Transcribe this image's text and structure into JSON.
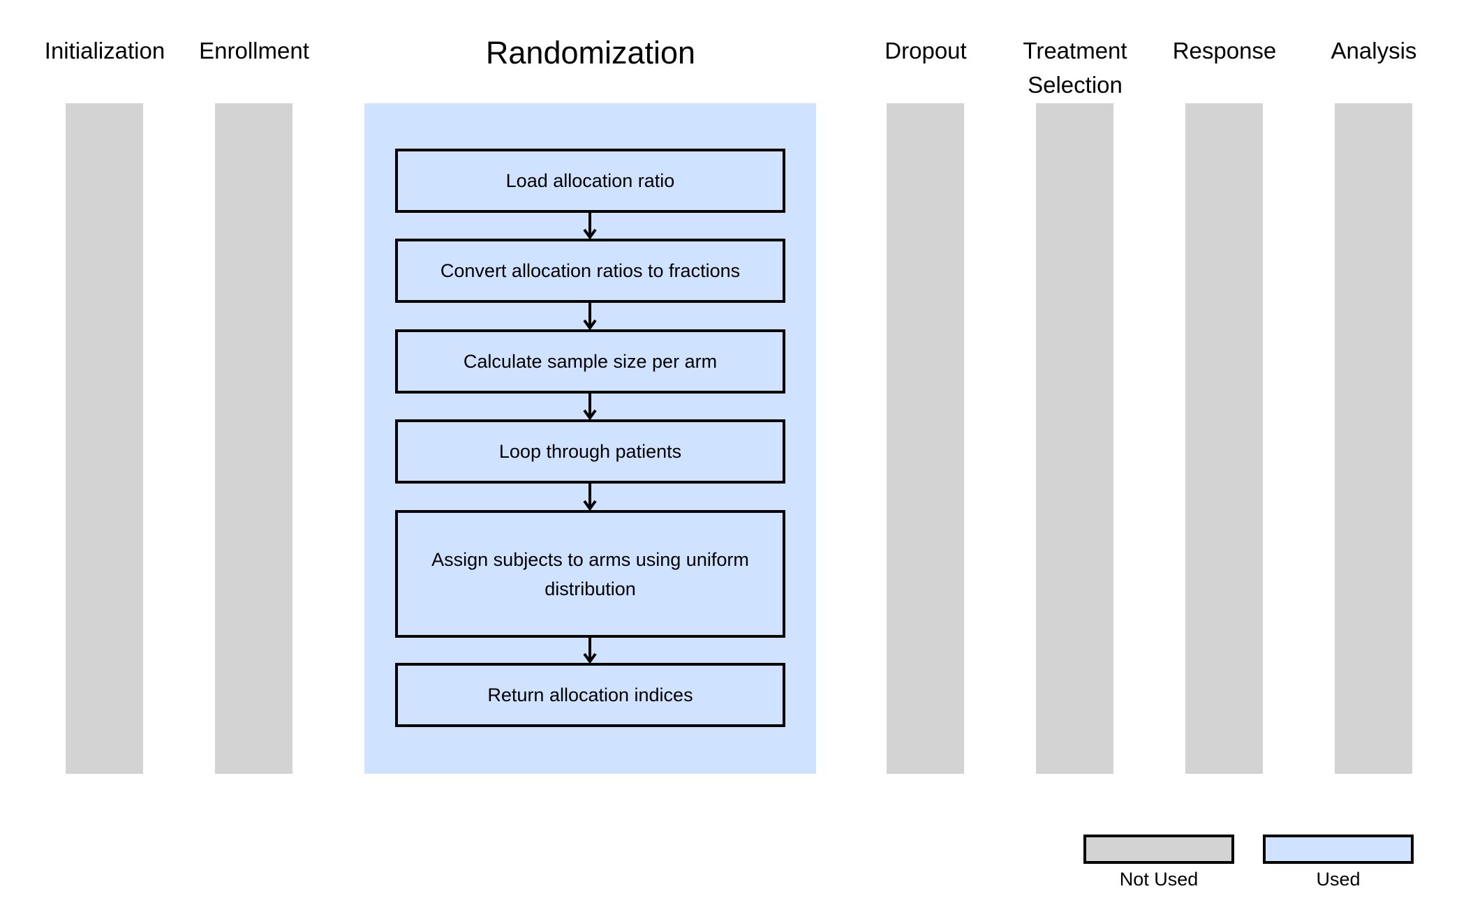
{
  "colors": {
    "not_used": "#d3d3d3",
    "used": "#cfe2ff",
    "border": "#000000"
  },
  "stages": [
    {
      "label": "Initialization",
      "used": false
    },
    {
      "label": "Enrollment",
      "used": false
    },
    {
      "label": "Randomization",
      "used": true
    },
    {
      "label": "Dropout",
      "used": false
    },
    {
      "label": "Treatment\nSelection",
      "used": false
    },
    {
      "label": "Response",
      "used": false
    },
    {
      "label": "Analysis",
      "used": false
    }
  ],
  "randomization_steps": [
    "Load allocation ratio",
    "Convert allocation ratios to fractions",
    "Calculate sample size per arm",
    "Loop through patients",
    "Assign subjects to arms using uniform distribution",
    "Return allocation indices"
  ],
  "legend": {
    "not_used": "Not Used",
    "used": "Used"
  }
}
